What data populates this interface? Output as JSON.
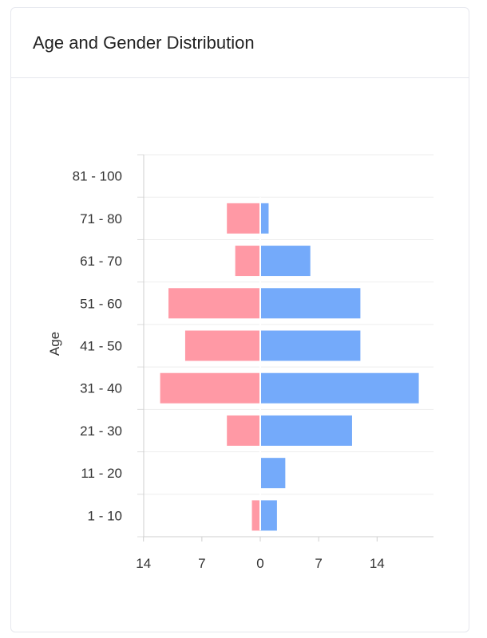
{
  "card": {
    "title": "Age and Gender Distribution"
  },
  "chart_data": {
    "type": "bar",
    "orientation": "horizontal-diverging",
    "title": "",
    "xlabel": "",
    "ylabel": "Age",
    "categories": [
      "81 - 100",
      "71 - 80",
      "61 - 70",
      "51 - 60",
      "41 - 50",
      "31 - 40",
      "21 - 30",
      "11 - 20",
      "1 - 10"
    ],
    "x_ticks": [
      14,
      7,
      0,
      7,
      14
    ],
    "xlim": [
      -14,
      20
    ],
    "series": [
      {
        "color": "#ff99a5",
        "side": "left",
        "values": [
          0,
          4,
          3,
          11,
          9,
          12,
          4,
          0,
          1
        ]
      },
      {
        "color": "#74aafa",
        "side": "right",
        "values": [
          0,
          1,
          6,
          12,
          12,
          19,
          11,
          3,
          2
        ]
      }
    ],
    "grid": true,
    "legend": "none"
  }
}
